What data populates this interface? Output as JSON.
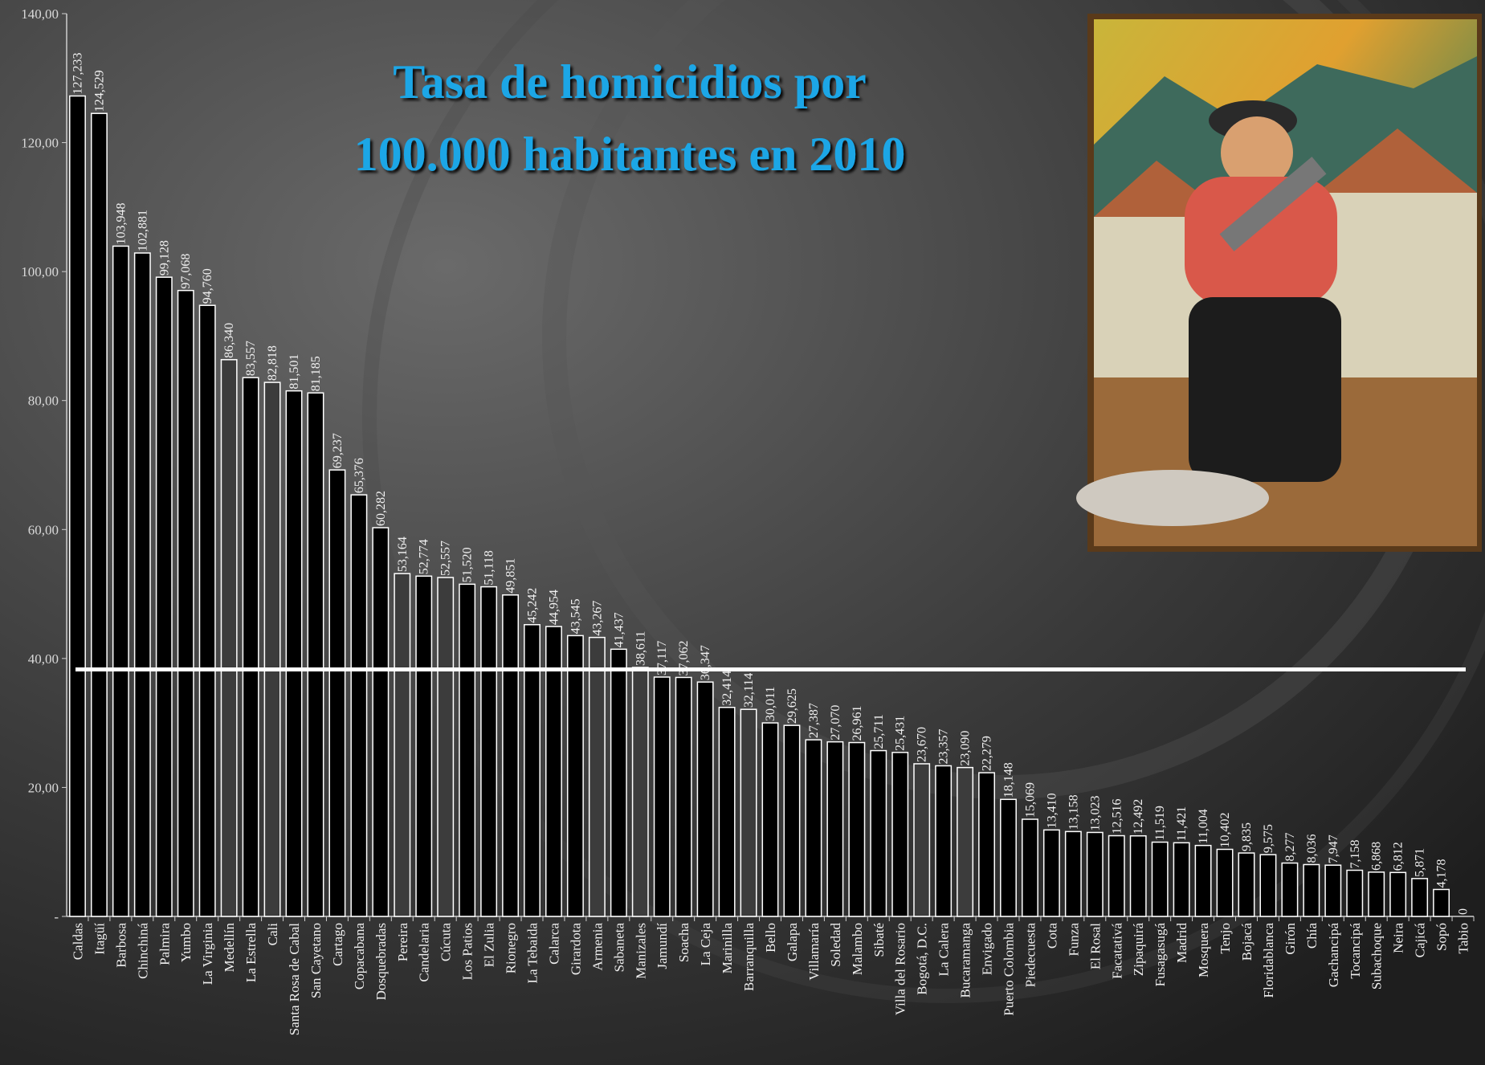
{
  "chart_data": {
    "type": "bar",
    "title": [
      "Tasa de homicidios por",
      "100.000 habitantes en 2010"
    ],
    "categories": [
      "Caldas",
      "Itagüí",
      "Barbosa",
      "Chinchiná",
      "Palmira",
      "Yumbo",
      "La Virginia",
      "Medellín",
      "La Estrella",
      "Cali",
      "Santa Rosa de Cabal",
      "San Cayetano",
      "Cartago",
      "Copacabana",
      "Dosquebradas",
      "Pereira",
      "Candelaria",
      "Cúcuta",
      "Los Patios",
      "El Zulia",
      "Rionegro",
      "La Tebaida",
      "Calarca",
      "Girardota",
      "Armenia",
      "Sabaneta",
      "Manizales",
      "Jamundí",
      "Soacha",
      "La Ceja",
      "Marinilla",
      "Barranquilla",
      "Bello",
      "Galapa",
      "Villamaría",
      "Soledad",
      "Malambo",
      "Sibaté",
      "Villa del Rosario",
      "Bogotá, D.C.",
      "La Calera",
      "Bucaramanga",
      "Envigado",
      "Puerto Colombia",
      "Piedecuesta",
      "Cota",
      "Funza",
      "El Rosal",
      "Facatativá",
      "Zipaquirá",
      "Fusagasugá",
      "Madrid",
      "Mosquera",
      "Tenjo",
      "Bojacá",
      "Floridablanca",
      "Girón",
      "Chía",
      "Gachancipá",
      "Tocancipá",
      "Subachoque",
      "Neira",
      "Cajicá",
      "Sopó",
      "Tabio"
    ],
    "values": [
      127.233,
      124.529,
      103.948,
      102.881,
      99.128,
      97.068,
      94.76,
      86.34,
      83.557,
      82.818,
      81.501,
      81.185,
      69.237,
      65.376,
      60.282,
      53.164,
      52.774,
      52.557,
      51.52,
      51.118,
      49.851,
      45.242,
      44.954,
      43.545,
      43.267,
      41.437,
      38.611,
      37.117,
      37.062,
      36.347,
      32.414,
      32.114,
      30.011,
      29.625,
      27.387,
      27.07,
      26.961,
      25.711,
      25.431,
      23.67,
      23.357,
      23.09,
      22.279,
      18.148,
      15.069,
      13.41,
      13.158,
      13.023,
      12.516,
      12.492,
      11.519,
      11.421,
      11.004,
      10.402,
      9.835,
      9.575,
      8.277,
      8.036,
      7.947,
      7.158,
      6.868,
      6.812,
      5.871,
      4.178,
      0
    ],
    "value_labels": [
      "127,233",
      "124,529",
      "103,948",
      "102,881",
      "99,128",
      "97,068",
      "94,760",
      "86,340",
      "83,557",
      "82,818",
      "81,501",
      "81,185",
      "69,237",
      "65,376",
      "60,282",
      "53,164",
      "52,774",
      "52,557",
      "51,520",
      "51,118",
      "49,851",
      "45,242",
      "44,954",
      "43,545",
      "43,267",
      "41,437",
      "38,611",
      "37,117",
      "37,062",
      "36,347",
      "32,414",
      "32,114",
      "30,011",
      "29,625",
      "27,387",
      "27,070",
      "26,961",
      "25,711",
      "25,431",
      "23,670",
      "23,357",
      "23,090",
      "22,279",
      "18,148",
      "15,069",
      "13,410",
      "13,158",
      "13,023",
      "12,516",
      "12,492",
      "11,519",
      "11,421",
      "11,004",
      "10,402",
      "9,835",
      "9,575",
      "8,277",
      "8,036",
      "7,947",
      "7,158",
      "6,868",
      "6,812",
      "5,871",
      "4,178",
      "0"
    ],
    "colors": [
      "#000000",
      "#000000",
      "#000000",
      "#000000",
      "#000000",
      "#000000",
      "#000000",
      "#3c3c3c",
      "#000000",
      "#3c3c3c",
      "#000000",
      "#000000",
      "#000000",
      "#000000",
      "#000000",
      "#3c3c3c",
      "#000000",
      "#3c3c3c",
      "#000000",
      "#000000",
      "#000000",
      "#000000",
      "#000000",
      "#000000",
      "#3c3c3c",
      "#000000",
      "#3c3c3c",
      "#000000",
      "#000000",
      "#000000",
      "#000000",
      "#3c3c3c",
      "#000000",
      "#000000",
      "#000000",
      "#000000",
      "#000000",
      "#000000",
      "#000000",
      "#3c3c3c",
      "#000000",
      "#3c3c3c",
      "#000000",
      "#000000",
      "#000000",
      "#000000",
      "#000000",
      "#000000",
      "#000000",
      "#000000",
      "#000000",
      "#000000",
      "#000000",
      "#000000",
      "#000000",
      "#000000",
      "#000000",
      "#000000",
      "#000000",
      "#000000",
      "#000000",
      "#000000",
      "#000000",
      "#000000",
      "#000000"
    ],
    "reference_line": 38.3,
    "ylim": [
      0,
      140
    ],
    "yticks": [
      {
        "value": 0,
        "label": "-"
      },
      {
        "value": 20,
        "label": "20,00"
      },
      {
        "value": 40,
        "label": "40,00"
      },
      {
        "value": 60,
        "label": "60,00"
      },
      {
        "value": 80,
        "label": "80,00"
      },
      {
        "value": 100,
        "label": "100,00"
      },
      {
        "value": 120,
        "label": "120,00"
      },
      {
        "value": 140,
        "label": "140,00"
      }
    ]
  }
}
